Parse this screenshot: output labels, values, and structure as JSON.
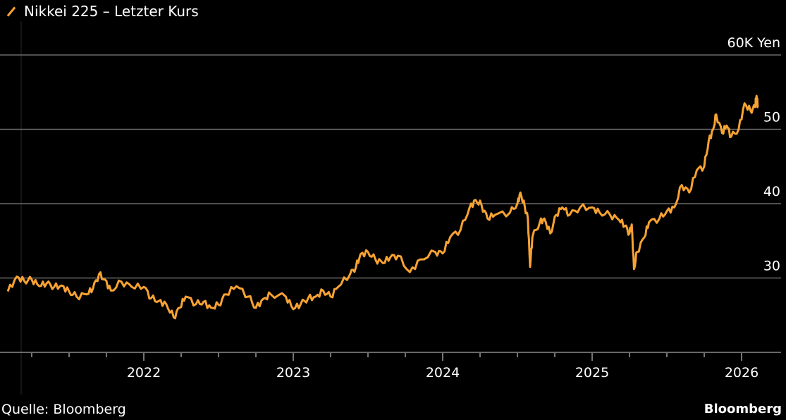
{
  "chart_data": {
    "type": "line",
    "title": "Nikkei 225 – Letzter Kurs",
    "legend": [
      {
        "name": "Nikkei 225 – Letzter Kurs",
        "color": "#f7a233"
      }
    ],
    "legend_placement": "top-left",
    "ylabel": "Yen",
    "y_unit_label": "60K Yen",
    "ylim": [
      20,
      60
    ],
    "yticks": [
      20,
      30,
      40,
      50,
      60
    ],
    "ytick_labels": [
      "",
      "30",
      "40",
      "50",
      "60K Yen"
    ],
    "xlim": [
      2021.05,
      2026.2
    ],
    "xticks": [
      2022,
      2023,
      2024,
      2025,
      2026
    ],
    "xtick_labels": [
      "2022",
      "2023",
      "2024",
      "2025",
      "2026"
    ],
    "grid": true,
    "series": [
      {
        "name": "Nikkei 225 – Letzter Kurs",
        "color": "#f7a233",
        "x": [
          2021.09,
          2021.15,
          2021.2,
          2021.25,
          2021.3,
          2021.35,
          2021.4,
          2021.45,
          2021.5,
          2021.55,
          2021.62,
          2021.66,
          2021.7,
          2021.74,
          2021.78,
          2021.85,
          2021.92,
          2022.0,
          2022.05,
          2022.1,
          2022.15,
          2022.2,
          2022.24,
          2022.28,
          2022.35,
          2022.4,
          2022.45,
          2022.5,
          2022.55,
          2022.62,
          2022.7,
          2022.75,
          2022.8,
          2022.85,
          2022.95,
          2023.0,
          2023.05,
          2023.1,
          2023.15,
          2023.2,
          2023.25,
          2023.3,
          2023.38,
          2023.42,
          2023.45,
          2023.5,
          2023.55,
          2023.6,
          2023.65,
          2023.7,
          2023.78,
          2023.85,
          2023.95,
          2024.0,
          2024.05,
          2024.12,
          2024.18,
          2024.22,
          2024.26,
          2024.3,
          2024.35,
          2024.45,
          2024.5,
          2024.52,
          2024.55,
          2024.57,
          2024.585,
          2024.6,
          2024.65,
          2024.68,
          2024.72,
          2024.76,
          2024.8,
          2024.85,
          2024.92,
          2025.0,
          2025.05,
          2025.12,
          2025.18,
          2025.22,
          2025.25,
          2025.265,
          2025.28,
          2025.3,
          2025.35,
          2025.38,
          2025.45,
          2025.5,
          2025.55,
          2025.6,
          2025.65,
          2025.7,
          2025.75,
          2025.78,
          2025.81,
          2025.83,
          2025.87,
          2025.9,
          2025.93,
          2025.98,
          2026.02,
          2026.06,
          2026.09,
          2026.1,
          2026.11
        ],
        "values": [
          28.2,
          30.2,
          29.6,
          29.8,
          28.9,
          29.3,
          28.8,
          29.0,
          28.2,
          27.5,
          27.8,
          28.6,
          30.5,
          29.8,
          28.3,
          29.5,
          28.8,
          28.8,
          27.3,
          26.9,
          26.5,
          24.7,
          26.0,
          27.5,
          26.5,
          26.8,
          26.0,
          26.4,
          27.8,
          28.9,
          27.5,
          26.0,
          27.2,
          27.8,
          27.5,
          25.8,
          26.5,
          27.3,
          27.5,
          28.3,
          27.5,
          28.8,
          30.5,
          31.5,
          33.2,
          33.5,
          32.5,
          32.0,
          32.8,
          33.0,
          30.8,
          32.5,
          33.5,
          33.3,
          35.5,
          36.5,
          39.5,
          40.5,
          39.8,
          38.0,
          38.5,
          38.8,
          40.0,
          41.5,
          39.5,
          38.0,
          31.5,
          35.5,
          37.5,
          38.0,
          36.0,
          38.5,
          39.5,
          38.5,
          39.5,
          39.5,
          38.8,
          38.5,
          37.8,
          37.0,
          36.0,
          37.2,
          31.2,
          33.5,
          35.5,
          37.5,
          38.0,
          39.0,
          39.5,
          42.5,
          41.5,
          44.5,
          45.0,
          48.5,
          50.0,
          52.0,
          49.5,
          50.5,
          49.0,
          50.0,
          53.5,
          52.5,
          53.0,
          54.5,
          53.0
        ]
      }
    ],
    "source": "Quelle: Bloomberg",
    "brand": "Bloomberg"
  }
}
